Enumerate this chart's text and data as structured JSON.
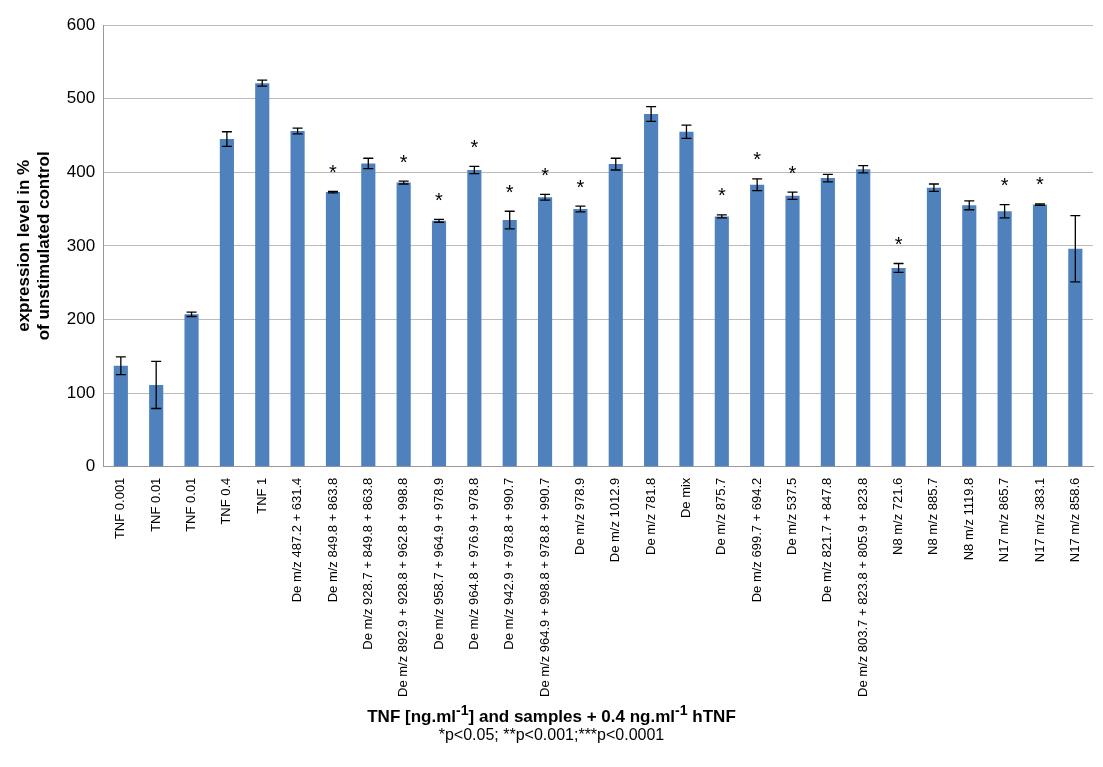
{
  "chart_data": {
    "type": "bar",
    "xlabel": "TNF [ng.ml$^{-1}$] and samples + 0.4 ng.ml$^{-1}$ hTNF",
    "ylabel": "expression level in %\nof unstimulated control",
    "categories": [
      "TNF 0.001",
      "TNF 0.01",
      "TNF 0.01",
      "TNF 0.4",
      "TNF 1",
      "De m/z 487.2 + 631.4",
      "De m/z 849.8 + 863.8",
      "De m/z 928.7 + 849.8 + 863.8",
      "De m/z 892.9 + 928.8 + 962.8 + 998.8",
      "De m/z 958.7 + 964.9 + 978.9",
      "De m/z 964.8 + 976.9 + 978.8",
      "De m/z 942.9 + 978.8 + 990.7",
      "De m/z 964.9 + 998.8 + 978.8 + 990.7",
      "De m/z 978.9",
      "De m/z 1012.9",
      "De m/z 781.8",
      "De mix",
      "De m/z 875.7",
      "De m/z 699.7 + 694.2",
      "De m/z 537.5",
      "De m/z 821.7 + 847.8",
      "De m/z 803.7 + 823.8 + 805.9 + 823.8",
      "N8 m/z 721.6",
      "N8 m/z 885.7",
      "N8 m/z 1119.8",
      "N17 m/z 865.7",
      "N17 m/z 383.1",
      "N17 m/z 858.6"
    ],
    "values": [
      137,
      111,
      207,
      445,
      521,
      456,
      373,
      412,
      386,
      334,
      403,
      335,
      366,
      350,
      411,
      479,
      455,
      340,
      383,
      368,
      392,
      404,
      270,
      379,
      355,
      347,
      356,
      296
    ],
    "errors": [
      12,
      32,
      3,
      10,
      4,
      4,
      1,
      7,
      2,
      2,
      5,
      12,
      4,
      4,
      8,
      10,
      9,
      2,
      8,
      5,
      5,
      5,
      6,
      5,
      6,
      9,
      1,
      45
    ],
    "color": "#4f81bd",
    "ylim": [
      0,
      600
    ],
    "yticks": [
      0,
      100,
      200,
      300,
      400,
      500,
      600
    ],
    "grid": "y",
    "annotations": [
      {
        "text": "*",
        "x": "De m/z 849.8 + 863.8",
        "y": 373
      },
      {
        "text": "*",
        "x": "De m/z 892.9 + 928.8 + 962.8 + 998.8",
        "y": 386
      },
      {
        "text": "*",
        "x": "De m/z 958.7 + 964.9 + 978.9",
        "y": 334
      },
      {
        "text": "*",
        "x": "De m/z 964.8 + 976.9 + 978.8",
        "y": 403
      },
      {
        "text": "*",
        "x": "De m/z 942.9 + 978.8 + 990.7",
        "y": 335
      },
      {
        "text": "*",
        "x": "De m/z 964.9 + 998.8 + 978.8 + 990.7",
        "y": 366
      },
      {
        "text": "*",
        "x": "De m/z 978.9",
        "y": 350
      },
      {
        "text": "*",
        "x": "De m/z 875.7",
        "y": 340
      },
      {
        "text": "*",
        "x": "De m/z 699.7 + 694.2",
        "y": 383
      },
      {
        "text": "*",
        "x": "De m/z 537.5",
        "y": 368
      },
      {
        "text": "*",
        "x": "N8 m/z 721.6",
        "y": 270
      },
      {
        "text": "*",
        "x": "N17 m/z 865.7",
        "y": 347
      },
      {
        "text": "*",
        "x": "N17 m/z 383.1",
        "y": 356
      },
      "*p<0.05; **p<0.001;***p<0.0001"
    ]
  }
}
